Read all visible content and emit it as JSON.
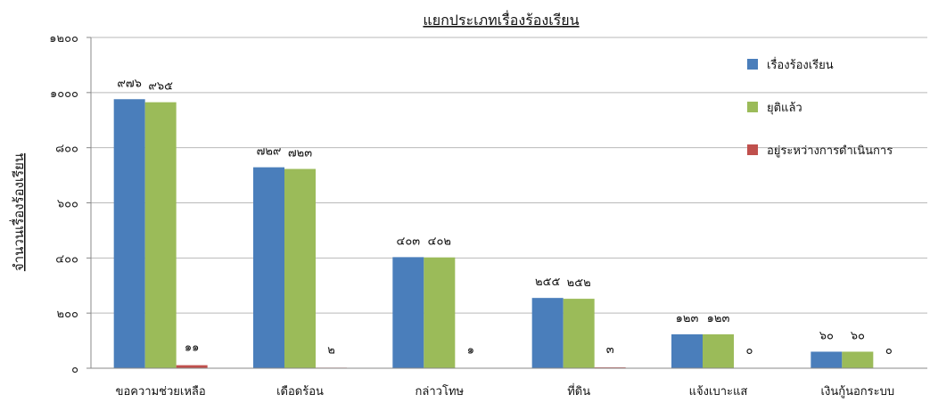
{
  "chart_data": {
    "type": "bar",
    "title": "แยกประเภทเรื่องร้องเรียน",
    "xlabel": "",
    "ylabel": "จำนวนเรื่องร้องเรียน",
    "ylim": [
      0,
      1200
    ],
    "yticks": [
      0,
      200,
      400,
      600,
      800,
      1000,
      1200
    ],
    "ytick_labels": [
      "๐",
      "๒๐๐",
      "๔๐๐",
      "๖๐๐",
      "๘๐๐",
      "๑๐๐๐",
      "๑๒๐๐"
    ],
    "grid": true,
    "legend_position": "top-right",
    "categories": [
      "ขอความช่วยเหลือ",
      "เดือดร้อน",
      "กล่าวโทษ",
      "ที่ดิน",
      "แจ้งเบาะแส",
      "เงินกู้นอกระบบ"
    ],
    "series": [
      {
        "name": "เรื่องร้องเรียน",
        "color": "#4a7ebb",
        "values": [
          976,
          729,
          403,
          255,
          123,
          60
        ],
        "labels": [
          "๙๗๖",
          "๗๒๙",
          "๔๐๓",
          "๒๕๕",
          "๑๒๓",
          "๖๐"
        ]
      },
      {
        "name": "ยุติแล้ว",
        "color": "#9bbb59",
        "values": [
          965,
          723,
          402,
          252,
          123,
          60
        ],
        "labels": [
          "๙๖๕",
          "๗๒๓",
          "๔๐๒",
          "๒๕๒",
          "๑๒๓",
          "๖๐"
        ]
      },
      {
        "name": "อยู่ระหว่างการดำเนินการ",
        "color": "#c0504d",
        "values": [
          11,
          2,
          1,
          3,
          0,
          0
        ],
        "labels": [
          "๑๑",
          "๒",
          "๑",
          "๓",
          "๐",
          "๐"
        ]
      }
    ]
  }
}
